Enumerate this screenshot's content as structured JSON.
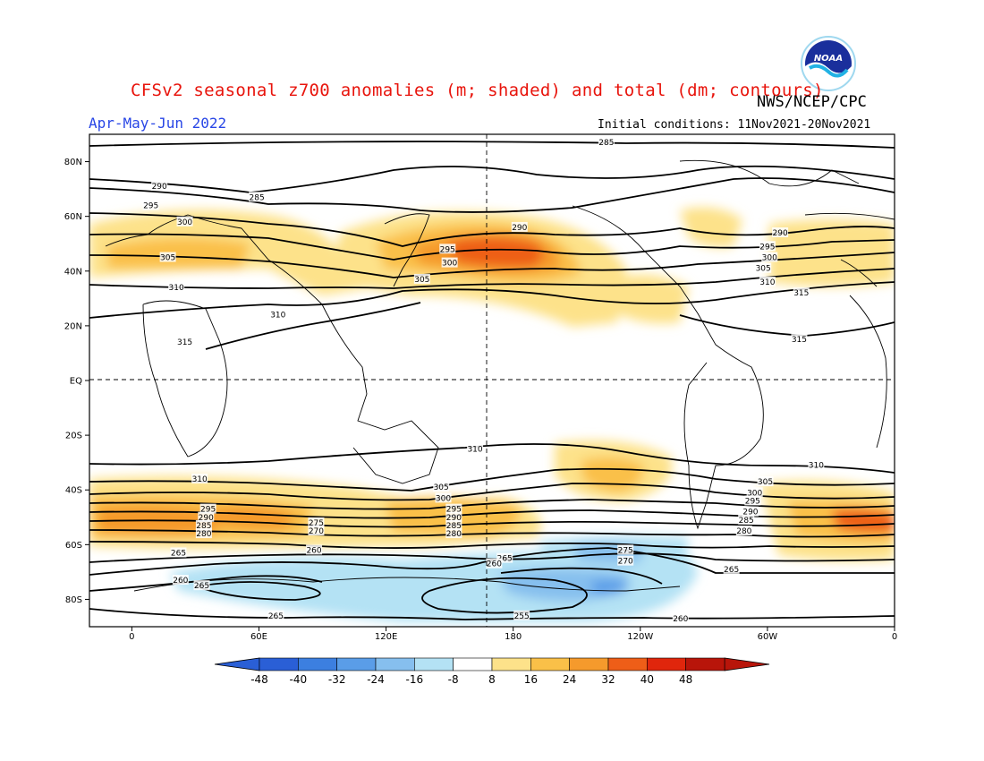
{
  "header": {
    "title": "CFSv2 seasonal z700 anomalies (m; shaded) and total (dm; contours)",
    "agency": "NWS/NCEP/CPC",
    "season": "Apr-May-Jun 2022",
    "initial_conditions": "Initial conditions: 11Nov2021-20Nov2021",
    "logo_text": "NOAA"
  },
  "map": {
    "lat_ticks": [
      "80N",
      "60N",
      "40N",
      "20N",
      "EQ",
      "20S",
      "40S",
      "60S",
      "80S"
    ],
    "lon_ticks": [
      "0",
      "60E",
      "120E",
      "180",
      "120W",
      "60W",
      "0"
    ],
    "contour_labels": [
      {
        "text": "285",
        "lon": 224,
        "lat": 87
      },
      {
        "text": "290",
        "lon": 13,
        "lat": 71
      },
      {
        "text": "285",
        "lon": 59,
        "lat": 67
      },
      {
        "text": "295",
        "lon": 9,
        "lat": 64
      },
      {
        "text": "300",
        "lon": 25,
        "lat": 58
      },
      {
        "text": "305",
        "lon": 17,
        "lat": 45
      },
      {
        "text": "310",
        "lon": 21,
        "lat": 34
      },
      {
        "text": "310",
        "lon": 69,
        "lat": 24
      },
      {
        "text": "315",
        "lon": 25,
        "lat": 14
      },
      {
        "text": "295",
        "lon": 149,
        "lat": 48
      },
      {
        "text": "300",
        "lon": 150,
        "lat": 43
      },
      {
        "text": "305",
        "lon": 137,
        "lat": 37
      },
      {
        "text": "290",
        "lon": 183,
        "lat": 56
      },
      {
        "text": "290",
        "lon": 306,
        "lat": 54
      },
      {
        "text": "295",
        "lon": 300,
        "lat": 49
      },
      {
        "text": "300",
        "lon": 301,
        "lat": 45
      },
      {
        "text": "305",
        "lon": 298,
        "lat": 41
      },
      {
        "text": "310",
        "lon": 300,
        "lat": 36
      },
      {
        "text": "315",
        "lon": 316,
        "lat": 32
      },
      {
        "text": "315",
        "lon": 315,
        "lat": 15
      },
      {
        "text": "310",
        "lon": 162,
        "lat": -25
      },
      {
        "text": "310",
        "lon": 323,
        "lat": -31
      },
      {
        "text": "310",
        "lon": 32,
        "lat": -36
      },
      {
        "text": "305",
        "lon": 146,
        "lat": -39
      },
      {
        "text": "300",
        "lon": 147,
        "lat": -43
      },
      {
        "text": "295",
        "lon": 152,
        "lat": -47
      },
      {
        "text": "290",
        "lon": 152,
        "lat": -50
      },
      {
        "text": "285",
        "lon": 152,
        "lat": -53
      },
      {
        "text": "280",
        "lon": 152,
        "lat": -56
      },
      {
        "text": "305",
        "lon": 299,
        "lat": -37
      },
      {
        "text": "300",
        "lon": 294,
        "lat": -41
      },
      {
        "text": "295",
        "lon": 293,
        "lat": -44
      },
      {
        "text": "290",
        "lon": 292,
        "lat": -48
      },
      {
        "text": "285",
        "lon": 290,
        "lat": -51
      },
      {
        "text": "280",
        "lon": 289,
        "lat": -55
      },
      {
        "text": "295",
        "lon": 36,
        "lat": -47
      },
      {
        "text": "290",
        "lon": 35,
        "lat": -50
      },
      {
        "text": "285",
        "lon": 34,
        "lat": -53
      },
      {
        "text": "280",
        "lon": 34,
        "lat": -56
      },
      {
        "text": "275",
        "lon": 87,
        "lat": -52
      },
      {
        "text": "270",
        "lon": 87,
        "lat": -55
      },
      {
        "text": "265",
        "lon": 22,
        "lat": -63
      },
      {
        "text": "260",
        "lon": 86,
        "lat": -62
      },
      {
        "text": "265",
        "lon": 176,
        "lat": -65
      },
      {
        "text": "260",
        "lon": 171,
        "lat": -67
      },
      {
        "text": "275",
        "lon": 233,
        "lat": -62
      },
      {
        "text": "270",
        "lon": 233,
        "lat": -66
      },
      {
        "text": "265",
        "lon": 283,
        "lat": -69
      },
      {
        "text": "260",
        "lon": 23,
        "lat": -73
      },
      {
        "text": "265",
        "lon": 33,
        "lat": -75
      },
      {
        "text": "265",
        "lon": 68,
        "lat": -86
      },
      {
        "text": "255",
        "lon": 184,
        "lat": -86
      },
      {
        "text": "260",
        "lon": 259,
        "lat": -87
      }
    ]
  },
  "colorbar": {
    "labels": [
      "-48",
      "-40",
      "-32",
      "-24",
      "-16",
      "-8",
      "8",
      "16",
      "24",
      "32",
      "40",
      "48"
    ],
    "colors": [
      "#2a5fd6",
      "#3c7fe0",
      "#5a9de8",
      "#86bfee",
      "#b4e2f4",
      "#ffffff",
      "#fde28a",
      "#fac048",
      "#f59a2c",
      "#ee5e18",
      "#e0260c",
      "#b8150a"
    ],
    "left_arrow_color": "#2a5fd6",
    "right_arrow_color": "#b8150a"
  },
  "colors": {
    "title": "#e8140c",
    "season": "#2846e6"
  }
}
